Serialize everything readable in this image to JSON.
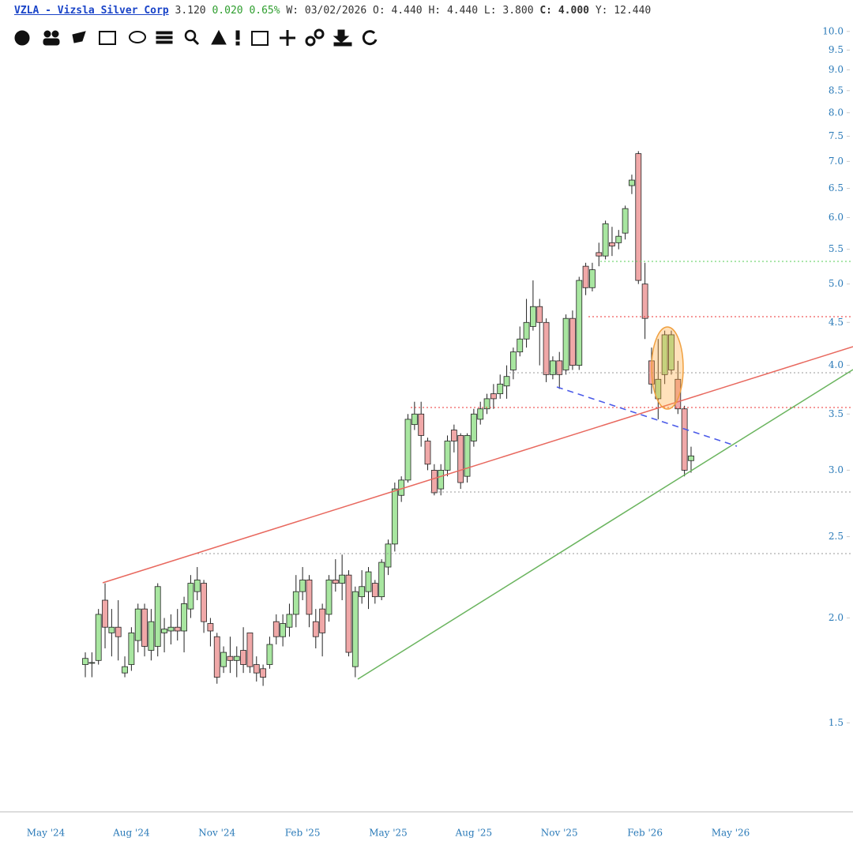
{
  "chart_data": {
    "type": "candlestick",
    "title": "VZLA - Vizsla Silver Corp",
    "quote": {
      "last": "3.120",
      "change": "0.020",
      "change_pct": "0.65%"
    },
    "fields": [
      {
        "label": "W:",
        "value": "03/02/2026"
      },
      {
        "label": "O:",
        "value": "4.440"
      },
      {
        "label": "H:",
        "value": "4.440"
      },
      {
        "label": "L:",
        "value": "3.800"
      },
      {
        "label": "C:",
        "value": "4.000"
      },
      {
        "label": "Y:",
        "value": "12.440"
      }
    ],
    "yscale": "log",
    "ylim": [
      1.175,
      10.9
    ],
    "yticks": [
      1.5,
      {
        "value": 2,
        "label": "2.0"
      },
      2.5,
      {
        "value": 3,
        "label": "3.0"
      },
      3.5,
      {
        "value": 4,
        "label": "4.0"
      },
      4.5,
      {
        "value": 5,
        "label": "5.0"
      },
      5.5,
      {
        "value": 6,
        "label": "6.0"
      },
      6.5,
      {
        "value": 7,
        "label": "7.0"
      },
      7.5,
      {
        "value": 8,
        "label": "8.0"
      },
      8.5,
      {
        "value": 9,
        "label": "9.0"
      },
      9.5,
      {
        "value": 10,
        "label": "10.0"
      }
    ],
    "up_color": "#a8e6a0",
    "down_color": "#f0a8a8",
    "categories": [
      "May '24",
      null,
      null,
      null,
      null,
      null,
      null,
      null,
      null,
      null,
      null,
      null,
      null,
      "Aug '24",
      null,
      null,
      null,
      null,
      null,
      null,
      null,
      null,
      null,
      null,
      null,
      null,
      "Nov '24",
      null,
      null,
      null,
      null,
      null,
      null,
      null,
      null,
      null,
      null,
      null,
      null,
      "Feb '25",
      null,
      null,
      null,
      null,
      null,
      null,
      null,
      null,
      null,
      null,
      null,
      null,
      "May '25",
      null,
      null,
      null,
      null,
      null,
      null,
      null,
      null,
      null,
      null,
      null,
      null,
      "Aug '25",
      null,
      null,
      null,
      null,
      null,
      null,
      null,
      null,
      null,
      null,
      null,
      null,
      "Nov '25",
      null,
      null,
      null,
      null,
      null,
      null,
      null,
      null,
      null,
      null,
      null,
      null,
      "Feb '26",
      null,
      null,
      null,
      null,
      null,
      null,
      null,
      null,
      null,
      null,
      null,
      null,
      "May '26"
    ],
    "open": [
      null,
      null,
      null,
      null,
      null,
      null,
      1.76,
      1.77,
      1.78,
      2.1,
      1.92,
      1.95,
      1.72,
      1.76,
      1.88,
      2.05,
      1.83,
      1.85,
      1.92,
      1.93,
      1.95,
      1.93,
      2.05,
      2.15,
      2.2,
      1.97,
      1.9,
      1.75,
      1.8,
      1.78,
      1.83,
      1.92,
      1.76,
      1.74,
      1.76,
      1.98,
      1.9,
      1.95,
      2.02,
      2.15,
      2.22,
      1.98,
      2.05,
      2.02,
      2.22,
      2.2,
      2.25,
      1.75,
      2.12,
      2.15,
      2.2,
      2.12,
      2.3,
      2.45,
      2.8,
      2.92,
      3.4,
      3.5,
      3.25,
      3.0,
      2.85,
      3.0,
      3.35,
      3.3,
      2.95,
      3.25,
      3.45,
      3.55,
      3.7,
      3.7,
      3.78,
      3.95,
      4.15,
      4.3,
      4.45,
      4.7,
      4.5,
      3.9,
      4.05,
      3.95,
      4.55,
      4.0,
      5.25,
      4.95,
      5.45,
      5.4,
      5.6,
      5.6,
      5.75,
      6.55,
      7.15,
      5.0,
      4.05,
      3.65,
      3.9,
      3.95,
      3.85,
      3.55,
      3.08,
      null,
      null,
      null,
      null,
      null,
      null
    ],
    "high": [
      null,
      null,
      null,
      null,
      null,
      null,
      1.82,
      1.82,
      2.05,
      2.2,
      2.05,
      2.1,
      1.8,
      1.95,
      2.08,
      2.08,
      2.05,
      2.2,
      2.0,
      2.02,
      2.05,
      2.12,
      2.25,
      2.3,
      2.22,
      2.0,
      1.92,
      1.85,
      1.9,
      1.85,
      1.95,
      1.92,
      1.8,
      1.76,
      1.9,
      2.02,
      2.02,
      2.08,
      2.25,
      2.3,
      2.25,
      2.05,
      2.08,
      2.25,
      2.35,
      2.38,
      2.28,
      2.18,
      2.28,
      2.3,
      2.22,
      2.35,
      2.48,
      2.9,
      2.95,
      3.5,
      3.62,
      3.62,
      3.28,
      3.05,
      3.05,
      3.3,
      3.4,
      3.32,
      3.32,
      3.55,
      3.62,
      3.7,
      3.8,
      3.9,
      4.0,
      4.2,
      4.45,
      4.8,
      5.05,
      4.8,
      4.55,
      4.1,
      4.15,
      4.6,
      4.65,
      5.1,
      5.3,
      5.3,
      5.6,
      5.95,
      5.85,
      5.8,
      6.2,
      6.75,
      7.2,
      5.3,
      4.2,
      4.3,
      4.4,
      4.4,
      4.05,
      3.58,
      3.2,
      null,
      null,
      null,
      null,
      null,
      null
    ],
    "low": [
      null,
      null,
      null,
      null,
      null,
      null,
      1.7,
      1.7,
      1.76,
      1.84,
      1.8,
      1.78,
      1.7,
      1.73,
      1.82,
      1.8,
      1.78,
      1.8,
      1.82,
      1.86,
      1.88,
      1.82,
      2.0,
      2.1,
      1.92,
      1.85,
      1.67,
      1.72,
      1.72,
      1.7,
      1.72,
      1.72,
      1.68,
      1.66,
      1.74,
      1.86,
      1.85,
      1.9,
      1.95,
      2.1,
      1.95,
      1.84,
      1.8,
      1.98,
      2.15,
      2.1,
      1.8,
      1.7,
      2.08,
      2.05,
      2.08,
      2.1,
      2.25,
      2.4,
      2.75,
      2.9,
      3.35,
      3.2,
      3.0,
      2.8,
      2.8,
      2.95,
      3.15,
      2.85,
      2.9,
      3.2,
      3.4,
      3.5,
      3.55,
      3.65,
      3.65,
      3.85,
      4.1,
      4.2,
      4.4,
      4.0,
      3.82,
      3.85,
      3.75,
      3.9,
      3.95,
      3.95,
      4.85,
      4.9,
      5.25,
      5.35,
      5.4,
      5.5,
      5.65,
      6.4,
      5.0,
      4.3,
      3.7,
      3.45,
      3.8,
      3.9,
      3.5,
      2.95,
      2.98,
      null,
      null,
      null,
      null,
      null,
      null
    ],
    "close": [
      null,
      null,
      null,
      null,
      null,
      null,
      1.79,
      1.77,
      2.02,
      1.95,
      1.95,
      1.9,
      1.75,
      1.92,
      2.05,
      1.85,
      1.98,
      2.18,
      1.94,
      1.95,
      1.93,
      2.08,
      2.2,
      2.22,
      1.98,
      1.93,
      1.7,
      1.82,
      1.78,
      1.8,
      1.76,
      1.75,
      1.72,
      1.7,
      1.86,
      1.9,
      1.97,
      2.02,
      2.15,
      2.22,
      2.02,
      1.9,
      1.92,
      2.22,
      2.2,
      2.25,
      1.82,
      2.15,
      2.18,
      2.27,
      2.12,
      2.33,
      2.45,
      2.85,
      2.92,
      3.45,
      3.5,
      3.3,
      3.05,
      2.82,
      3.0,
      3.25,
      3.25,
      2.9,
      3.3,
      3.5,
      3.55,
      3.65,
      3.65,
      3.8,
      3.88,
      4.15,
      4.3,
      4.5,
      4.7,
      4.5,
      3.9,
      4.05,
      3.9,
      4.55,
      4.0,
      5.05,
      4.95,
      5.2,
      5.4,
      5.9,
      5.55,
      5.7,
      6.15,
      6.65,
      5.05,
      4.55,
      3.8,
      3.85,
      4.35,
      4.35,
      3.55,
      3.0,
      3.12,
      null,
      null,
      null,
      null,
      null,
      null
    ]
  }
}
